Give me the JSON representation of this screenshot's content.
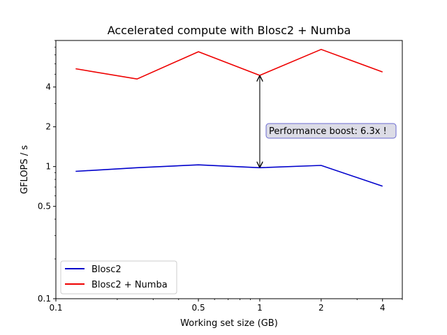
{
  "chart_data": {
    "type": "line",
    "title": "Accelerated compute with Blosc2 + Numba",
    "xlabel": "Working set size (GB)",
    "ylabel": "GFLOPS / s",
    "xscale": "log",
    "yscale": "log",
    "xlim": [
      0.1,
      5.0
    ],
    "ylim": [
      0.1,
      9.0
    ],
    "x_ticks": [
      {
        "value": 0.1,
        "label": "0.1"
      },
      {
        "value": 0.5,
        "label": "0.5"
      },
      {
        "value": 1,
        "label": "1"
      },
      {
        "value": 2,
        "label": "2"
      },
      {
        "value": 4,
        "label": "4"
      }
    ],
    "y_ticks": [
      {
        "value": 0.1,
        "label": "0.1"
      },
      {
        "value": 0.5,
        "label": "0.5"
      },
      {
        "value": 1,
        "label": "1"
      },
      {
        "value": 2,
        "label": "2"
      },
      {
        "value": 4,
        "label": "4"
      }
    ],
    "x": [
      0.125,
      0.25,
      0.5,
      1,
      2,
      4
    ],
    "series": [
      {
        "name": "Blosc2",
        "color": "#0000cc",
        "values": [
          0.92,
          0.98,
          1.03,
          0.98,
          1.02,
          0.71
        ]
      },
      {
        "name": "Blosc2 + Numba",
        "color": "#ee0000",
        "values": [
          5.5,
          4.6,
          7.4,
          4.9,
          7.7,
          5.2
        ]
      }
    ],
    "annotation": {
      "text": "Performance boost: 6.3x !",
      "arrow_x": 1,
      "arrow_from": 0.98,
      "arrow_to": 4.9,
      "text_x": 1.04,
      "text_y": 1.65
    },
    "legend": {
      "position": "bottom-left",
      "entries": [
        "Blosc2",
        "Blosc2 + Numba"
      ]
    },
    "grid": false
  }
}
